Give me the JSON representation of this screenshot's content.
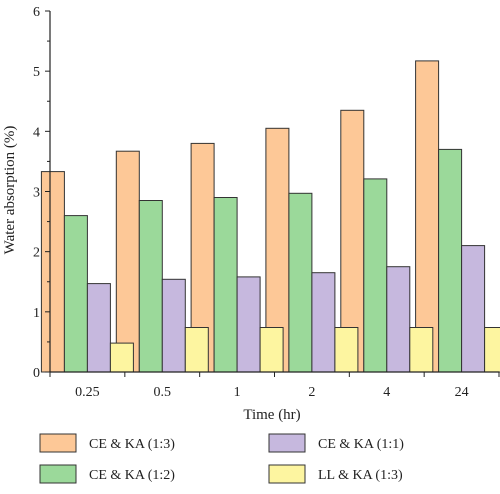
{
  "chart_data": {
    "type": "bar",
    "title": "",
    "xlabel": "Time (hr)",
    "ylabel": "Water absorption (%)",
    "ylim": [
      0,
      6
    ],
    "yticks": [
      0,
      1,
      2,
      3,
      4,
      5,
      6
    ],
    "categories": [
      "0.25",
      "0.5",
      "1",
      "2",
      "4",
      "24"
    ],
    "series": [
      {
        "name": "CE & KA (1:3)",
        "color": "#fdc897",
        "values": [
          3.33,
          3.67,
          3.8,
          4.05,
          4.35,
          5.17
        ]
      },
      {
        "name": "CE & KA (1:2)",
        "color": "#9bd99a",
        "values": [
          2.6,
          2.85,
          2.9,
          2.97,
          3.21,
          3.7
        ]
      },
      {
        "name": "CE & KA (1:1)",
        "color": "#c6b8de",
        "values": [
          1.47,
          1.54,
          1.58,
          1.65,
          1.75,
          2.1
        ]
      },
      {
        "name": "LL & KA (1:3)",
        "color": "#fdf5a0",
        "values": [
          0.48,
          0.74,
          0.74,
          0.74,
          0.74,
          0.74
        ]
      }
    ],
    "grid": false,
    "legend": "bottom"
  }
}
